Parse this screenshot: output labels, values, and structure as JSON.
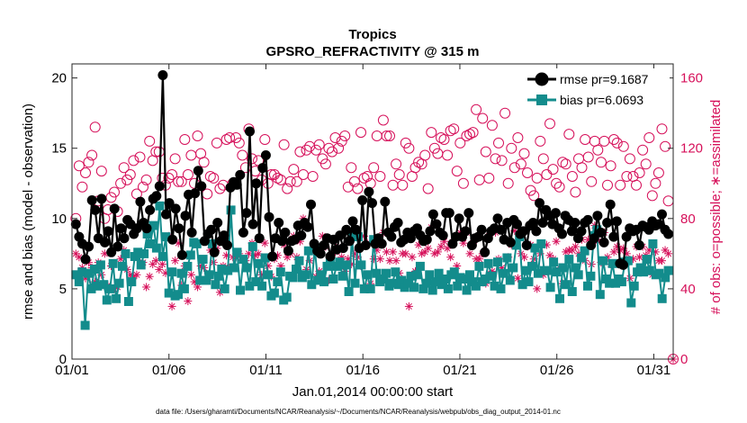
{
  "chart_data": {
    "type": "line",
    "title_line1": "Tropics",
    "title_line2": "GPSRO_REFRACTIVITY @ 315 m",
    "xlabel": "Jan.01,2014 00:00:00 start",
    "ylabel": "rmse and bias (model - observation)",
    "y2label": "# of obs: o=possible; ∗=assimilated",
    "footnote": "data file: /Users/gharamti/Documents/NCAR/Reanalysis/~/Documents/NCAR/Reanalysis/webpub/obs_diag_output_2014-01.nc",
    "xlim": [
      1,
      32
    ],
    "ylim": [
      0,
      21
    ],
    "y2lim": [
      0,
      168
    ],
    "xticks": [
      1,
      6,
      11,
      16,
      21,
      26,
      31
    ],
    "xtick_labels": [
      "01/01",
      "01/06",
      "01/11",
      "01/16",
      "01/21",
      "01/26",
      "01/31"
    ],
    "yticks": [
      0,
      5,
      10,
      15,
      20
    ],
    "ytick_labels": [
      "0",
      "5",
      "10",
      "15",
      "20"
    ],
    "y2ticks": [
      0,
      40,
      80,
      120,
      160
    ],
    "y2tick_labels": [
      "0",
      "40",
      "80",
      "120",
      "160"
    ],
    "colors": {
      "rmse": "#000000",
      "bias": "#138c8c",
      "obs": "#d6105a"
    },
    "series": [
      {
        "name": "rmse pr=9.1687",
        "axis": "left",
        "values": [
          9.6,
          8.7,
          8.2,
          7.1,
          8.0,
          11.3,
          10.6,
          8.6,
          11.4,
          8.3,
          9.1,
          7.6,
          10.7,
          8.0,
          9.3,
          8.6,
          9.9,
          9.6,
          8.9,
          9.3,
          11.2,
          9.7,
          9.3,
          10.6,
          11.4,
          11.6,
          12.3,
          20.2,
          10.3,
          11.1,
          8.5,
          10.7,
          9.3,
          7.4,
          10.2,
          11.7,
          9.0,
          11.8,
          13.4,
          12.3,
          8.4,
          8.9,
          9.2,
          7.6,
          9.7,
          8.4,
          8.8,
          8.1,
          12.2,
          12.6,
          12.4,
          13.1,
          9.0,
          10.4,
          16.2,
          9.6,
          12.5,
          8.6,
          13.6,
          14.5,
          10.1,
          7.3,
          8.6,
          9.7,
          8.4,
          9.0,
          7.7,
          8.4,
          8.5,
          9.5,
          8.8,
          9.7,
          9.4,
          11.0,
          8.2,
          7.7,
          7.5,
          8.1,
          8.6,
          7.3,
          8.5,
          7.8,
          8.8,
          7.9,
          9.2,
          8.4,
          9.8,
          9.2,
          7.9,
          11.3,
          8.1,
          11.9,
          11.1,
          8.2,
          8.6,
          8.2,
          11.2,
          9.0,
          8.7,
          9.4,
          9.7,
          8.3,
          8.5,
          9.0,
          8.6,
          9.1,
          9.3,
          8.8,
          8.4,
          8.5,
          9.1,
          10.3,
          9.6,
          9.0,
          8.8,
          10.4,
          10.4,
          8.2,
          8.7,
          10.0,
          8.7,
          9.1,
          10.4,
          8.1,
          8.6,
          8.7,
          9.2,
          7.6,
          8.6,
          9.1,
          9.3,
          10.0,
          9.2,
          8.5,
          9.7,
          8.3,
          9.9,
          9.6,
          8.9,
          9.1,
          8.1,
          9.5,
          9.7,
          9.1,
          11.1,
          9.7,
          10.6,
          10.2,
          9.6,
          10.4,
          9.3,
          8.9,
          10.2,
          9.9,
          9.1,
          9.7,
          8.6,
          9.1,
          9.7,
          9.9,
          8.1,
          8.6,
          10.2,
          9.0,
          8.3,
          9.7,
          11.0,
          8.7,
          9.8,
          6.8,
          6.7,
          8.7,
          9.3,
          9.1,
          9.2,
          8.1,
          9.5,
          9.4,
          9.2,
          9.8,
          9.5,
          9.6,
          10.3,
          9.2,
          8.9
        ]
      },
      {
        "name": "bias pr=6.0693",
        "axis": "left",
        "values": [
          6.0,
          5.5,
          6.2,
          2.4,
          6.1,
          5.0,
          6.4,
          5.2,
          6.7,
          5.3,
          4.2,
          5.0,
          6.8,
          4.3,
          5.4,
          6.6,
          7.5,
          4.1,
          5.5,
          7.3,
          7.6,
          6.7,
          7.5,
          8.9,
          8.2,
          9.5,
          7.9,
          10.9,
          7.3,
          8.7,
          4.7,
          6.2,
          4.5,
          4.6,
          6.1,
          5.0,
          6.6,
          7.4,
          8.3,
          8.2,
          5.6,
          7.1,
          5.6,
          6.0,
          8.2,
          5.3,
          5.9,
          6.4,
          5.0,
          6.3,
          10.6,
          6.5,
          7.6,
          4.9,
          7.1,
          6.5,
          5.2,
          8.0,
          5.5,
          6.8,
          5.2,
          7.2,
          6.0,
          4.5,
          4.7,
          5.5,
          6.2,
          4.2,
          4.4,
          5.9,
          5.8,
          6.4,
          7.0,
          5.8,
          6.0,
          7.7,
          5.3,
          7.9,
          5.6,
          6.0,
          5.5,
          6.6,
          6.9,
          5.7,
          6.6,
          6.9,
          5.9,
          6.7,
          4.8,
          8.8,
          5.4,
          8.7,
          6.7,
          5.0,
          6.0,
          5.0,
          8.5,
          6.1,
          5.5,
          5.7,
          6.1,
          5.2,
          5.4,
          6.2,
          5.3,
          5.6,
          5.1,
          5.4,
          5.9,
          5.1,
          6.0,
          6.6,
          5.0,
          5.4,
          6.0,
          4.9,
          5.5,
          6.1,
          5.3,
          5.7,
          5.0,
          6.0,
          6.2,
          5.2,
          5.8,
          5.7,
          4.9,
          6.0,
          5.5,
          5.2,
          6.6,
          5.5,
          5.7,
          6.8,
          5.9,
          5.2,
          6.9,
          5.0,
          6.1,
          7.2,
          5.6,
          6.5,
          8.1,
          8.7,
          5.3,
          6.3,
          5.5,
          6.6,
          7.9,
          6.1,
          8.2,
          6.3,
          6.3,
          5.1,
          6.9,
          6.2,
          4.3,
          6.5,
          5.3,
          7.1,
          4.8,
          6.5,
          6.0,
          7.2,
          7.7,
          5.2,
          5.9,
          8.8,
          9.2,
          4.6,
          7.0,
          5.7,
          5.4,
          6.8,
          5.4,
          5.7,
          5.5,
          6.9,
          7.0,
          4.0,
          5.2,
          6.2,
          6.5,
          6.2,
          7.1,
          6.3,
          8.2,
          6.0,
          6.1,
          4.3,
          5.8,
          6.3
        ]
      },
      {
        "name": "possible",
        "axis": "right",
        "marker": "circle",
        "values": [
          80,
          110,
          98,
          106,
          112,
          116,
          132,
          90,
          107,
          80,
          85,
          92,
          95,
          84,
          100,
          109,
          102,
          105,
          113,
          94,
          115,
          98,
          102,
          124,
          113,
          118,
          118,
          103,
          99,
          103,
          105,
          114,
          101,
          101,
          125,
          105,
          116,
          100,
          127,
          117,
          112,
          94,
          104,
          103,
          123,
          97,
          99,
          125,
          126,
          100,
          126,
          123,
          116,
          109,
          131,
          114,
          107,
          113,
          102,
          125,
          100,
          105,
          105,
          103,
          102,
          122,
          97,
          101,
          108,
          101,
          118,
          105,
          119,
          121,
          104,
          119,
          122,
          114,
          111,
          120,
          118,
          126,
          120,
          124,
          127,
          98,
          109,
          101,
          97,
          129,
          103,
          104,
          100,
          109,
          127,
          104,
          136,
          127,
          127,
          99,
          111,
          105,
          99,
          123,
          120,
          104,
          109,
          112,
          111,
          116,
          97,
          129,
          120,
          117,
          126,
          125,
          116,
          130,
          131,
          107,
          123,
          100,
          127,
          128,
          129,
          142,
          102,
          137,
          118,
          103,
          133,
          114,
          123,
          113,
          140,
          100,
          120,
          109,
          126,
          111,
          117,
          106,
          96,
          93,
          103,
          124,
          114,
          105,
          134,
          108,
          100,
          98,
          112,
          111,
          128,
          104,
          95,
          114,
          109,
          125,
          115,
          101,
          124,
          119,
          112,
          124,
          99,
          110,
          125,
          123,
          99,
          121,
          104,
          114,
          104,
          99,
          106,
          119,
          111,
          126,
          93,
          100,
          106,
          131,
          121,
          90
        ]
      },
      {
        "name": "assimilated",
        "axis": "right",
        "marker": "asterisk",
        "values": [
          60,
          58,
          52,
          46,
          55,
          52,
          44,
          55,
          48,
          60,
          42,
          53,
          40,
          41,
          57,
          62,
          51,
          48,
          47,
          48,
          60,
          55,
          41,
          47,
          54,
          56,
          51,
          54,
          49,
          70,
          30,
          56,
          66,
          42,
          53,
          33,
          48,
          44,
          41,
          53,
          52,
          45,
          62,
          55,
          63,
          38,
          53,
          59,
          52,
          58,
          58,
          60,
          56,
          56,
          60,
          66,
          59,
          60,
          48,
          66,
          53,
          47,
          57,
          59,
          53,
          65,
          58,
          60,
          70,
          58,
          67,
          80,
          51,
          56,
          62,
          47,
          50,
          70,
          64,
          45,
          60,
          61,
          64,
          58,
          50,
          57,
          54,
          60,
          58,
          53,
          70,
          66,
          43,
          57,
          62,
          57,
          72,
          61,
          56,
          61,
          56,
          49,
          60,
          60,
          30,
          58,
          50,
          65,
          60,
          61,
          63,
          75,
          60,
          61,
          64,
          67,
          63,
          58,
          68,
          53,
          72,
          66,
          72,
          60,
          66,
          57,
          57,
          60,
          43,
          70,
          50,
          72,
          57,
          52,
          68,
          58,
          65,
          73,
          46,
          60,
          58,
          64,
          65,
          57,
          40,
          60,
          48,
          65,
          59,
          57,
          67,
          52,
          43,
          61,
          62,
          62,
          64,
          60,
          68,
          56,
          68,
          54,
          76,
          67,
          55,
          72,
          58,
          54,
          61,
          64,
          62,
          63,
          60,
          46,
          57,
          64,
          58,
          64,
          59,
          62,
          48,
          61,
          56,
          56,
          62,
          60
        ]
      }
    ],
    "legend": [
      {
        "label": "rmse pr=9.1687"
      },
      {
        "label": "bias pr=6.0693"
      }
    ]
  }
}
